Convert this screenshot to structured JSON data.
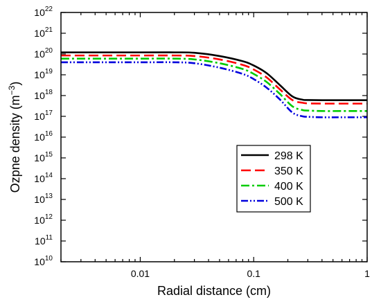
{
  "chart_data": {
    "type": "line",
    "xlabel": "Radial distance (cm)",
    "ylabel_main": "Ozpne density (m",
    "ylabel_exp": "−3",
    "ylabel_close": ")",
    "xscale": "log",
    "yscale": "log",
    "xlim": [
      0.002,
      1
    ],
    "ylim": [
      10000000000.0,
      1e+22
    ],
    "x_ticks": [
      {
        "value": 0.01,
        "label": "0.01"
      },
      {
        "value": 0.1,
        "label": "0.1"
      },
      {
        "value": 1,
        "label": "1"
      }
    ],
    "y_ticks": [
      {
        "exp": 10,
        "base": "10",
        "sup": "10"
      },
      {
        "exp": 11,
        "base": "10",
        "sup": "11"
      },
      {
        "exp": 12,
        "base": "10",
        "sup": "12"
      },
      {
        "exp": 13,
        "base": "10",
        "sup": "13"
      },
      {
        "exp": 14,
        "base": "10",
        "sup": "14"
      },
      {
        "exp": 15,
        "base": "10",
        "sup": "15"
      },
      {
        "exp": 16,
        "base": "10",
        "sup": "16"
      },
      {
        "exp": 17,
        "base": "10",
        "sup": "17"
      },
      {
        "exp": 18,
        "base": "10",
        "sup": "18"
      },
      {
        "exp": 19,
        "base": "10",
        "sup": "19"
      },
      {
        "exp": 20,
        "base": "10",
        "sup": "20"
      },
      {
        "exp": 21,
        "base": "10",
        "sup": "21"
      },
      {
        "exp": 22,
        "base": "10",
        "sup": "22"
      }
    ],
    "legend_position": "center-right",
    "series": [
      {
        "name": "298 K",
        "color": "#000000",
        "dash": "solid",
        "x": [
          0.002,
          0.01,
          0.02,
          0.03,
          0.05,
          0.08,
          0.1,
          0.13,
          0.17,
          0.22,
          0.27,
          0.3,
          0.4,
          0.6,
          1.0
        ],
        "y": [
          1.2e+20,
          1.2e+20,
          1.2e+20,
          1.15e+20,
          8e+19,
          4.5e+19,
          2.8e+19,
          1.2e+19,
          3.2e+18,
          9e+17,
          6.3e+17,
          6.1e+17,
          6e+17,
          6e+17,
          6e+17
        ]
      },
      {
        "name": "350 K",
        "color": "#ff0000",
        "dash": "long-dash",
        "x": [
          0.002,
          0.01,
          0.02,
          0.03,
          0.05,
          0.08,
          0.1,
          0.13,
          0.17,
          0.22,
          0.27,
          0.3,
          0.4,
          0.6,
          1.0
        ],
        "y": [
          8.5e+19,
          8.5e+19,
          8.5e+19,
          8e+19,
          5.5e+19,
          3e+19,
          1.8e+19,
          7.5e+18,
          2e+18,
          6e+17,
          4.5e+17,
          4.2e+17,
          4.1e+17,
          4.1e+17,
          4.1e+17
        ]
      },
      {
        "name": "400 K",
        "color": "#00cc00",
        "dash": "dash-dot",
        "x": [
          0.002,
          0.01,
          0.02,
          0.03,
          0.05,
          0.08,
          0.1,
          0.13,
          0.17,
          0.22,
          0.27,
          0.3,
          0.4,
          0.6,
          1.0
        ],
        "y": [
          6e+19,
          6e+19,
          6e+19,
          5.5e+19,
          3.6e+19,
          1.9e+19,
          1.1e+19,
          4.5e+18,
          1.2e+18,
          3e+17,
          2e+17,
          1.9e+17,
          1.8e+17,
          1.8e+17,
          1.8e+17
        ]
      },
      {
        "name": "500 K",
        "color": "#0000dd",
        "dash": "dash-dot-dot",
        "x": [
          0.002,
          0.01,
          0.02,
          0.03,
          0.05,
          0.08,
          0.1,
          0.13,
          0.17,
          0.22,
          0.27,
          0.3,
          0.4,
          0.6,
          1.0
        ],
        "y": [
          4e+19,
          4e+19,
          4e+19,
          3.6e+19,
          2.2e+19,
          1.1e+19,
          6.2e+18,
          2.4e+18,
          6.5e+17,
          1.5e+17,
          1e+17,
          9.5e+16,
          9e+16,
          9e+16,
          9e+16
        ]
      }
    ]
  }
}
